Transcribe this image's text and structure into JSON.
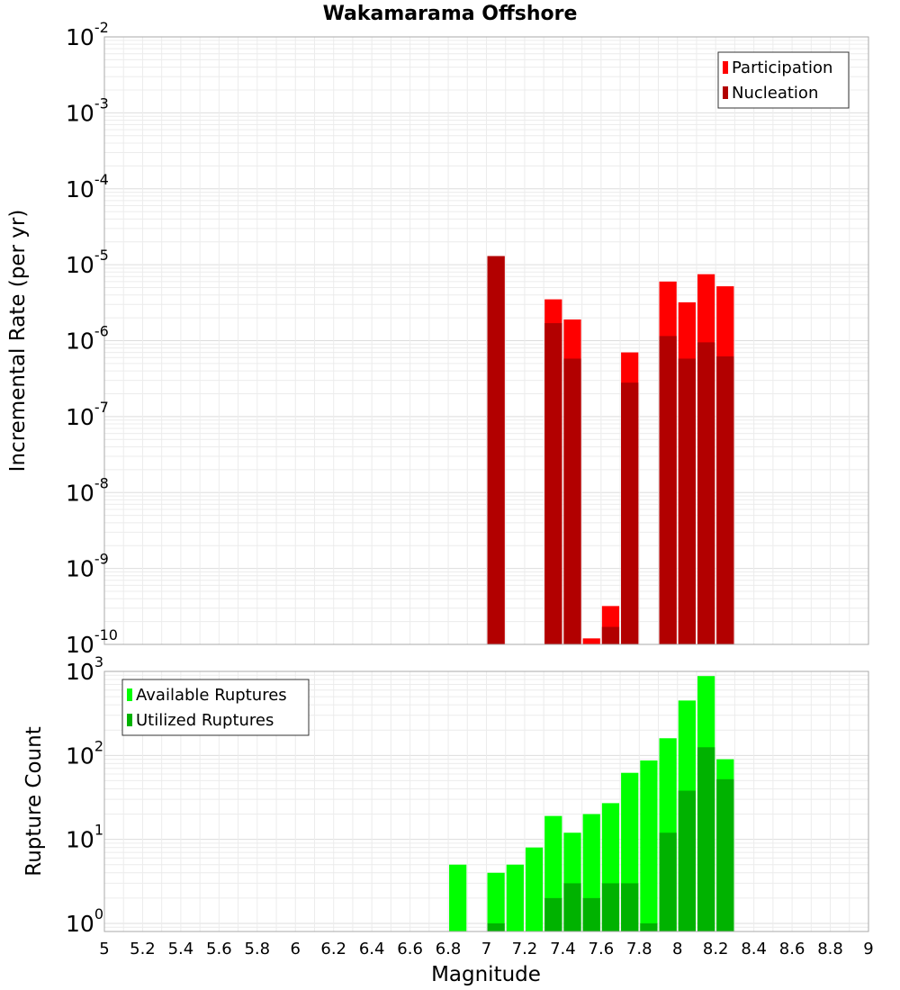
{
  "chart_data": {
    "type": "bar",
    "title": "Wakamarama Offshore",
    "xlabel": "Magnitude",
    "xlim": [
      5,
      9
    ],
    "x_ticks": [
      "5",
      "5.2",
      "5.4",
      "5.6",
      "5.8",
      "6",
      "6.2",
      "6.4",
      "6.6",
      "6.8",
      "7",
      "7.2",
      "7.4",
      "7.6",
      "7.8",
      "8",
      "8.2",
      "8.4",
      "8.6",
      "8.8",
      "9"
    ],
    "bin_width": 0.1,
    "panels": [
      {
        "ylabel": "Incremental Rate (per yr)",
        "yscale": "log",
        "ylim": [
          1e-10,
          0.01
        ],
        "y_ticks": [
          {
            "base": "10",
            "exp": "-10"
          },
          {
            "base": "10",
            "exp": "-9"
          },
          {
            "base": "10",
            "exp": "-8"
          },
          {
            "base": "10",
            "exp": "-7"
          },
          {
            "base": "10",
            "exp": "-6"
          },
          {
            "base": "10",
            "exp": "-5"
          },
          {
            "base": "10",
            "exp": "-4"
          },
          {
            "base": "10",
            "exp": "-3"
          },
          {
            "base": "10",
            "exp": "-2"
          }
        ],
        "legend_position": "top-right",
        "series": [
          {
            "name": "Participation",
            "color": "#ff0000",
            "x": [
              7.05,
              7.35,
              7.45,
              7.55,
              7.65,
              7.75,
              7.95,
              8.05,
              8.15,
              8.25
            ],
            "values": [
              1.3e-05,
              3.5e-06,
              1.9e-06,
              1.2e-10,
              3.2e-10,
              7e-07,
              6e-06,
              3.2e-06,
              7.5e-06,
              5.2e-06
            ]
          },
          {
            "name": "Nucleation",
            "color": "#b20000",
            "x": [
              7.05,
              7.35,
              7.45,
              7.55,
              7.65,
              7.75,
              7.95,
              8.05,
              8.15,
              8.25
            ],
            "values": [
              1.3e-05,
              1.7e-06,
              5.8e-07,
              1e-10,
              1.7e-10,
              2.8e-07,
              1.15e-06,
              5.8e-07,
              9.5e-07,
              6.2e-07
            ]
          }
        ]
      },
      {
        "ylabel": "Rupture Count",
        "yscale": "log",
        "ylim": [
          0.8,
          1000
        ],
        "y_ticks": [
          {
            "base": "10",
            "exp": "0"
          },
          {
            "base": "10",
            "exp": "1"
          },
          {
            "base": "10",
            "exp": "2"
          },
          {
            "base": "10",
            "exp": "3"
          }
        ],
        "legend_position": "top-left",
        "series": [
          {
            "name": "Available Ruptures",
            "color": "#00ff00",
            "x": [
              6.85,
              7.05,
              7.15,
              7.25,
              7.35,
              7.45,
              7.55,
              7.65,
              7.75,
              7.85,
              7.95,
              8.05,
              8.15,
              8.25
            ],
            "values": [
              5,
              4,
              5,
              8,
              19,
              12,
              20,
              27,
              62,
              87,
              160,
              450,
              880,
              90
            ]
          },
          {
            "name": "Utilized Ruptures",
            "color": "#00b200",
            "x": [
              7.05,
              7.35,
              7.45,
              7.55,
              7.65,
              7.75,
              7.85,
              7.95,
              8.05,
              8.15,
              8.25
            ],
            "values": [
              1,
              2,
              3,
              2,
              3,
              3,
              1,
              12,
              38,
              125,
              52
            ]
          }
        ]
      }
    ]
  }
}
